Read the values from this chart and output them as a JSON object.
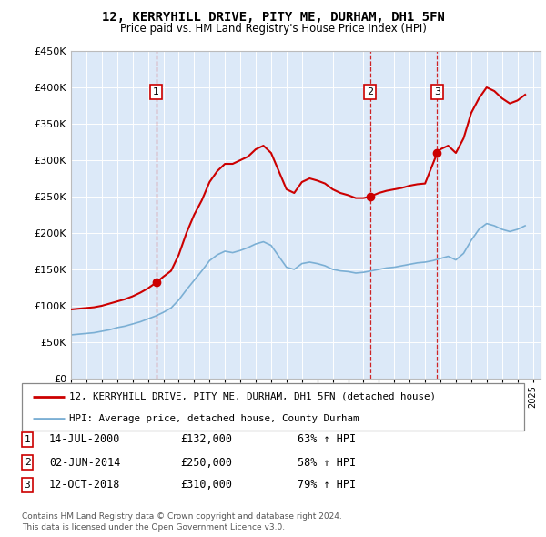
{
  "title": "12, KERRYHILL DRIVE, PITY ME, DURHAM, DH1 5FN",
  "subtitle": "Price paid vs. HM Land Registry's House Price Index (HPI)",
  "legend_label_red": "12, KERRYHILL DRIVE, PITY ME, DURHAM, DH1 5FN (detached house)",
  "legend_label_blue": "HPI: Average price, detached house, County Durham",
  "footnote1": "Contains HM Land Registry data © Crown copyright and database right 2024.",
  "footnote2": "This data is licensed under the Open Government Licence v3.0.",
  "sales": [
    {
      "num": 1,
      "date": "14-JUL-2000",
      "price": "£132,000",
      "change": "63% ↑ HPI",
      "year": 2000.54
    },
    {
      "num": 2,
      "date": "02-JUN-2014",
      "price": "£250,000",
      "change": "58% ↑ HPI",
      "year": 2014.42
    },
    {
      "num": 3,
      "date": "12-OCT-2018",
      "price": "£310,000",
      "change": "79% ↑ HPI",
      "year": 2018.79
    }
  ],
  "sale_marker_values": [
    132000,
    250000,
    310000
  ],
  "ylim": [
    0,
    450000
  ],
  "xlim_start": 1995,
  "xlim_end": 2025.5,
  "background_color": "#dce9f8",
  "red_color": "#cc0000",
  "blue_color": "#7bafd4",
  "red_hpi_data": {
    "x": [
      1995.0,
      1995.5,
      1996.0,
      1996.5,
      1997.0,
      1997.5,
      1998.0,
      1998.5,
      1999.0,
      1999.5,
      2000.0,
      2000.54,
      2001.0,
      2001.5,
      2002.0,
      2002.5,
      2003.0,
      2003.5,
      2004.0,
      2004.5,
      2005.0,
      2005.5,
      2006.0,
      2006.5,
      2007.0,
      2007.5,
      2008.0,
      2008.5,
      2009.0,
      2009.5,
      2010.0,
      2010.5,
      2011.0,
      2011.5,
      2012.0,
      2012.5,
      2013.0,
      2013.5,
      2014.0,
      2014.42,
      2015.0,
      2015.5,
      2016.0,
      2016.5,
      2017.0,
      2017.5,
      2018.0,
      2018.79,
      2019.0,
      2019.5,
      2020.0,
      2020.5,
      2021.0,
      2021.5,
      2022.0,
      2022.5,
      2023.0,
      2023.5,
      2024.0,
      2024.5
    ],
    "y": [
      95000,
      96000,
      97000,
      98000,
      100000,
      103000,
      106000,
      109000,
      113000,
      118000,
      124000,
      132000,
      140000,
      148000,
      170000,
      200000,
      225000,
      245000,
      270000,
      285000,
      295000,
      295000,
      300000,
      305000,
      315000,
      320000,
      310000,
      285000,
      260000,
      255000,
      270000,
      275000,
      272000,
      268000,
      260000,
      255000,
      252000,
      248000,
      248000,
      250000,
      255000,
      258000,
      260000,
      262000,
      265000,
      267000,
      268000,
      310000,
      315000,
      320000,
      310000,
      330000,
      365000,
      385000,
      400000,
      395000,
      385000,
      378000,
      382000,
      390000
    ]
  },
  "blue_hpi_data": {
    "x": [
      1995.0,
      1995.5,
      1996.0,
      1996.5,
      1997.0,
      1997.5,
      1998.0,
      1998.5,
      1999.0,
      1999.5,
      2000.0,
      2000.5,
      2001.0,
      2001.5,
      2002.0,
      2002.5,
      2003.0,
      2003.5,
      2004.0,
      2004.5,
      2005.0,
      2005.5,
      2006.0,
      2006.5,
      2007.0,
      2007.5,
      2008.0,
      2008.5,
      2009.0,
      2009.5,
      2010.0,
      2010.5,
      2011.0,
      2011.5,
      2012.0,
      2012.5,
      2013.0,
      2013.5,
      2014.0,
      2014.5,
      2015.0,
      2015.5,
      2016.0,
      2016.5,
      2017.0,
      2017.5,
      2018.0,
      2018.5,
      2019.0,
      2019.5,
      2020.0,
      2020.5,
      2021.0,
      2021.5,
      2022.0,
      2022.5,
      2023.0,
      2023.5,
      2024.0,
      2024.5
    ],
    "y": [
      60000,
      61000,
      62000,
      63000,
      65000,
      67000,
      70000,
      72000,
      75000,
      78000,
      82000,
      86000,
      91000,
      97000,
      108000,
      122000,
      135000,
      148000,
      162000,
      170000,
      175000,
      173000,
      176000,
      180000,
      185000,
      188000,
      183000,
      168000,
      153000,
      150000,
      158000,
      160000,
      158000,
      155000,
      150000,
      148000,
      147000,
      145000,
      146000,
      148000,
      150000,
      152000,
      153000,
      155000,
      157000,
      159000,
      160000,
      162000,
      165000,
      168000,
      163000,
      172000,
      190000,
      205000,
      213000,
      210000,
      205000,
      202000,
      205000,
      210000
    ]
  }
}
